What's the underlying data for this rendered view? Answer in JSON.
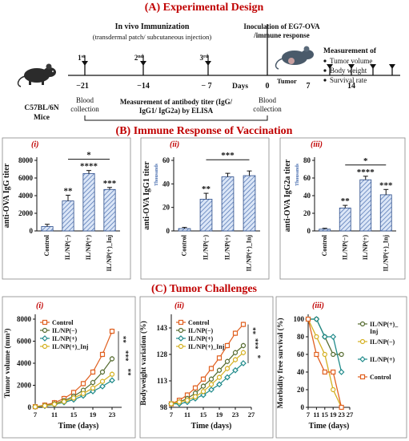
{
  "panel_a": {
    "title": "(A) Experimental Design",
    "immunization_title": "In vivo Immunization",
    "immunization_sub": "(transdermal patch/ subcutaneous injection)",
    "doses": [
      "1",
      "2",
      "3"
    ],
    "dose_sup": [
      "st",
      "nd",
      "rd"
    ],
    "days": [
      "−21",
      "−14",
      "− 7",
      "0",
      "7",
      "14"
    ],
    "days_label": "Days",
    "tumor_label": "Tumor",
    "inoculation_line1": "Inoculation of EG7-OVA",
    "inoculation_line2": "/immune response",
    "measurement_title": "Measurement of",
    "measurement_items": [
      "Tumor volume",
      "Body weight",
      "Survival rate"
    ],
    "mice_line1": "C57BL/6N",
    "mice_line2": "Mice",
    "blood_line1": "Blood",
    "blood_line2": "collection",
    "elisa_line1": "Measurement of antibody titer (IgG/",
    "elisa_line2": "IgG1/ IgG2a) by ELISA"
  },
  "panel_b": {
    "title": "(B) Immune Response of Vaccination"
  },
  "panel_c": {
    "title": "(C) Tumor Challenges"
  },
  "chart_data": [
    {
      "id": "b_i",
      "roman": "(i)",
      "type": "bar",
      "ylabel": "anti-OVA IgG titer",
      "categories": [
        "Control",
        "IL/NP(−)",
        "IL/NP(+)",
        "IL/NP(+)_Inj"
      ],
      "values": [
        500,
        3400,
        6500,
        4700
      ],
      "errors": [
        250,
        650,
        350,
        230
      ],
      "ylim": [
        0,
        8000
      ],
      "yticks": [
        "0",
        "2000",
        "4000",
        "6000",
        "8000"
      ],
      "sig": [
        "",
        "**",
        "****",
        "***"
      ],
      "bracket": "*"
    },
    {
      "id": "b_ii",
      "roman": "(ii)",
      "type": "bar",
      "ylabel": "anti-OVA IgG1 titer",
      "unit": "Thousands",
      "categories": [
        "Control",
        "IL/NP(−)",
        "IL/NP(+)",
        "IL/NP(+)_Inj"
      ],
      "values": [
        2,
        27,
        46,
        47
      ],
      "errors": [
        1,
        5,
        3,
        4
      ],
      "ylim": [
        0,
        60
      ],
      "yticks": [
        "0",
        "20",
        "40",
        "60"
      ],
      "sig": [
        "",
        "**",
        "",
        ""
      ],
      "bracket": "***"
    },
    {
      "id": "b_iii",
      "roman": "(iii)",
      "type": "bar",
      "ylabel": "anti-OVA IgG2a titer",
      "unit": "Thousands",
      "categories": [
        "Control",
        "IL/NP(−)",
        "IL/NP(+)",
        "IL/NP(+)_Inj"
      ],
      "values": [
        2,
        26,
        58,
        41
      ],
      "errors": [
        1,
        3,
        4,
        6
      ],
      "ylim": [
        0,
        80
      ],
      "yticks": [
        "0",
        "20",
        "40",
        "60",
        "80"
      ],
      "sig": [
        "",
        "**",
        "****",
        "***"
      ],
      "bracket": "*"
    },
    {
      "id": "c_i",
      "roman": "(i)",
      "type": "line",
      "xlabel": "Time (days)",
      "ylabel": "Tumor volume (mm³)",
      "x": [
        7,
        9,
        11,
        13,
        15,
        17,
        19,
        21,
        23
      ],
      "xticks": [
        "7",
        "11",
        "15",
        "19",
        "23"
      ],
      "xlim": [
        7,
        25
      ],
      "ylim": [
        0,
        8000
      ],
      "yticks": [
        "0",
        "2000",
        "4000",
        "6000",
        "8000"
      ],
      "series": [
        {
          "name": "Control",
          "color": "#e06020",
          "marker": "square",
          "values": [
            60,
            200,
            420,
            800,
            1350,
            2150,
            3200,
            4800,
            6900
          ]
        },
        {
          "name": "IL/NP(−)",
          "color": "#556b2f",
          "marker": "circle",
          "values": [
            50,
            160,
            320,
            600,
            1000,
            1550,
            2250,
            3200,
            4400
          ]
        },
        {
          "name": "IL/NP(+)",
          "color": "#1f8a8a",
          "marker": "diamond",
          "values": [
            40,
            120,
            250,
            450,
            700,
            1050,
            1450,
            1900,
            2450
          ]
        },
        {
          "name": "IL/NP(+)_Inj",
          "color": "#d4b020",
          "marker": "circle",
          "values": [
            45,
            140,
            280,
            520,
            850,
            1250,
            1750,
            2350,
            3000
          ]
        }
      ],
      "sig": [
        "**",
        "***",
        "**"
      ]
    },
    {
      "id": "c_ii",
      "roman": "(ii)",
      "type": "line",
      "xlabel": "Time (days)",
      "ylabel": "Bodyweight variation (%)",
      "x": [
        7,
        9,
        11,
        13,
        15,
        17,
        19,
        21,
        23,
        25
      ],
      "xticks": [
        "7",
        "11",
        "15",
        "19",
        "23",
        "27"
      ],
      "xlim": [
        7,
        27
      ],
      "ylim": [
        98,
        148
      ],
      "yticks": [
        "98",
        "113",
        "128",
        "143"
      ],
      "series": [
        {
          "name": "Control",
          "color": "#e06020",
          "marker": "square",
          "values": [
            100,
            102,
            105,
            109,
            114,
            120,
            126,
            133,
            140,
            145
          ]
        },
        {
          "name": "IL/NP(−)",
          "color": "#556b2f",
          "marker": "circle",
          "values": [
            100,
            101,
            103,
            106,
            110,
            114,
            119,
            124,
            129,
            133
          ]
        },
        {
          "name": "IL/NP(+)",
          "color": "#1f8a8a",
          "marker": "diamond",
          "values": [
            100,
            100,
            101,
            103,
            105,
            108,
            111,
            115,
            119,
            123
          ]
        },
        {
          "name": "IL/NP(+)_Inj",
          "color": "#d4b020",
          "marker": "circle",
          "values": [
            100,
            101,
            102,
            104,
            107,
            111,
            115,
            120,
            125,
            129
          ]
        }
      ],
      "sig": [
        "**",
        "***",
        "*"
      ]
    },
    {
      "id": "c_iii",
      "roman": "(iii)",
      "type": "line",
      "xlabel": "Time (days)",
      "ylabel": "Morbidity free survival (%)",
      "x": [
        7,
        11,
        15,
        19,
        23,
        27
      ],
      "xticks": [
        "7",
        "11",
        "15",
        "19",
        "23",
        "27"
      ],
      "xlim": [
        7,
        27
      ],
      "ylim": [
        0,
        100
      ],
      "yticks": [
        "0",
        "20",
        "40",
        "60",
        "80",
        "100"
      ],
      "series": [
        {
          "name": "IL/NP(+)_ Inj",
          "color": "#556b2f",
          "marker": "circle",
          "x": [
            7,
            11,
            15,
            19,
            23
          ],
          "values": [
            100,
            100,
            80,
            60,
            60
          ]
        },
        {
          "name": "IL/NP(−)",
          "color": "#d4b020",
          "marker": "circle",
          "x": [
            7,
            11,
            15,
            19,
            23
          ],
          "values": [
            100,
            80,
            60,
            20,
            0
          ]
        },
        {
          "name": "IL/NP(+)",
          "color": "#1f8a8a",
          "marker": "diamond",
          "x": [
            7,
            11,
            15,
            19,
            23
          ],
          "values": [
            100,
            100,
            80,
            80,
            40
          ]
        },
        {
          "name": "Control",
          "color": "#e06020",
          "marker": "square",
          "x": [
            7,
            11,
            15,
            19,
            23
          ],
          "values": [
            100,
            60,
            40,
            40,
            0
          ]
        }
      ]
    }
  ]
}
